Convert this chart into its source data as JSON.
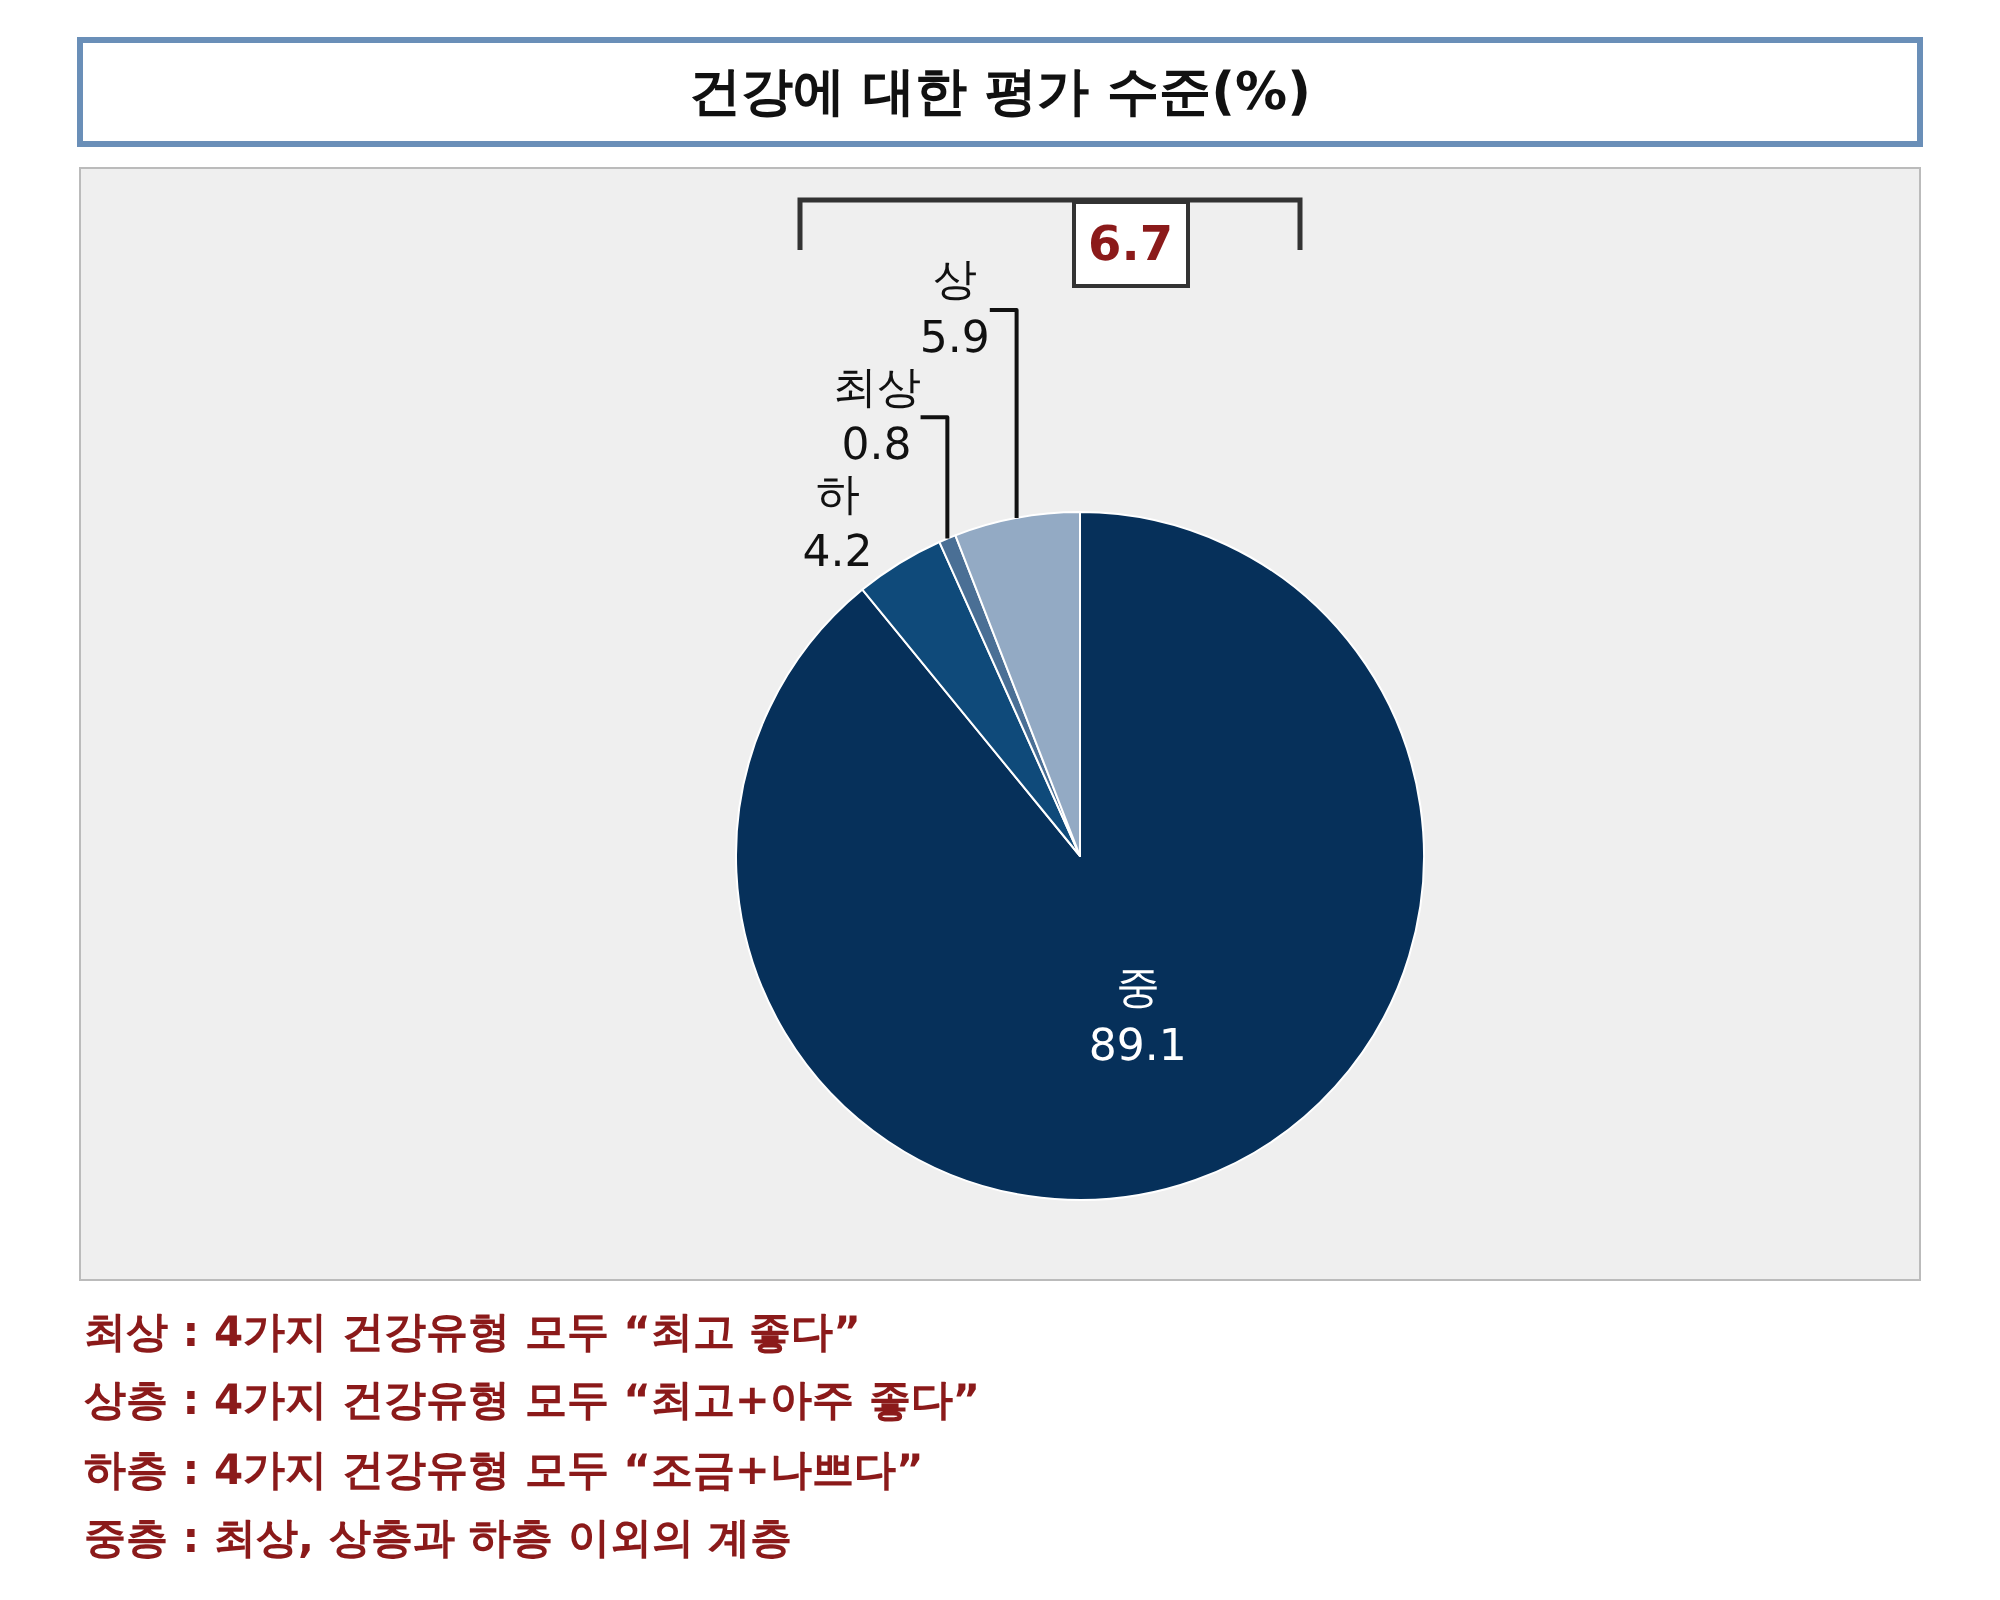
{
  "chart_data": {
    "type": "pie",
    "title": "건강에 대한 평가 수준(%)",
    "categories": [
      "중",
      "하",
      "최상",
      "상"
    ],
    "values": [
      89.1,
      4.2,
      0.8,
      5.9
    ],
    "colors": [
      "#06305a",
      "#0f4a7a",
      "#4a6f95",
      "#93aac4"
    ],
    "data_labels": true,
    "legend": false,
    "annotations": [
      "6.7",
      "최상 : 4가지 건강유형 모두 “최고 좋다”",
      "상층 : 4가지 건강유형 모두 “최고+아주 좋다”",
      "하층 : 4가지 건강유형 모두 “조금+나쁘다”",
      "중층 : 최상, 상층과 하층 이외의 계층"
    ]
  }
}
